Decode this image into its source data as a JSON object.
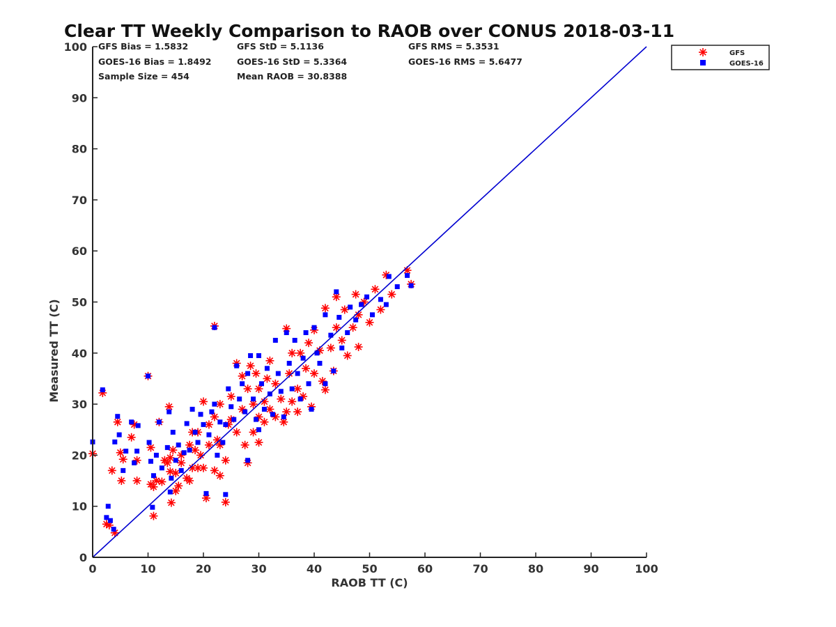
{
  "chart_data": {
    "type": "scatter",
    "title": "Clear TT Weekly Comparison to RAOB over CONUS 2018-03-11",
    "xlabel": "RAOB TT (C)",
    "ylabel": "Measured TT (C)",
    "xlim": [
      0,
      100
    ],
    "ylim": [
      0,
      100
    ],
    "xticks": [
      "0",
      "10",
      "20",
      "30",
      "40",
      "50",
      "60",
      "70",
      "80",
      "90",
      "100"
    ],
    "yticks": [
      "0",
      "10",
      "20",
      "30",
      "40",
      "50",
      "60",
      "70",
      "80",
      "90",
      "100"
    ],
    "grid": false,
    "legend_position": "top-right-outside",
    "reference_line": {
      "from": [
        0,
        0
      ],
      "to": [
        100,
        100
      ],
      "color": "#0000d0"
    },
    "stats": {
      "gfs_bias": "GFS Bias = 1.5832",
      "goes_bias": "GOES-16 Bias = 1.8492",
      "sample_size": "Sample Size = 454",
      "gfs_std": "GFS StD = 5.1136",
      "goes_std": "GOES-16 StD = 5.3364",
      "mean_raob": "Mean RAOB = 30.8388",
      "gfs_rms": "GFS RMS = 5.3531",
      "goes_rms": "GOES-16 RMS = 5.6477"
    },
    "series": [
      {
        "name": "GFS",
        "marker": "asterisk",
        "color": "#ff0000",
        "points": [
          [
            0,
            20.3
          ],
          [
            1.8,
            32.2
          ],
          [
            2.5,
            6.5
          ],
          [
            3,
            6.3
          ],
          [
            3.5,
            17
          ],
          [
            4,
            4.8
          ],
          [
            4.5,
            26.5
          ],
          [
            5,
            20.5
          ],
          [
            5.2,
            15
          ],
          [
            5.5,
            19.2
          ],
          [
            7,
            23.5
          ],
          [
            7.5,
            26
          ],
          [
            8,
            15
          ],
          [
            8,
            19
          ],
          [
            10,
            35.5
          ],
          [
            10.5,
            21.5
          ],
          [
            10.5,
            14.3
          ],
          [
            11,
            8.1
          ],
          [
            11,
            13.8
          ],
          [
            11.5,
            15
          ],
          [
            12,
            26.5
          ],
          [
            12.5,
            14.8
          ],
          [
            13,
            19
          ],
          [
            13.5,
            18.5
          ],
          [
            13.8,
            29.5
          ],
          [
            14,
            16.8
          ],
          [
            14,
            19.5
          ],
          [
            14.2,
            10.7
          ],
          [
            14.5,
            21
          ],
          [
            15,
            13
          ],
          [
            15,
            16.5
          ],
          [
            15.5,
            14
          ],
          [
            16,
            20
          ],
          [
            16,
            18.5
          ],
          [
            17,
            15.5
          ],
          [
            17.5,
            22
          ],
          [
            17.5,
            15
          ],
          [
            18,
            17.5
          ],
          [
            18,
            24.5
          ],
          [
            18.5,
            21
          ],
          [
            19,
            17.5
          ],
          [
            19,
            24.5
          ],
          [
            19.5,
            20
          ],
          [
            20,
            30.5
          ],
          [
            20,
            17.5
          ],
          [
            20.5,
            11.6
          ],
          [
            21,
            22
          ],
          [
            21,
            26
          ],
          [
            22,
            27.5
          ],
          [
            22,
            45.3
          ],
          [
            22,
            17
          ],
          [
            22.5,
            23
          ],
          [
            23,
            16
          ],
          [
            23,
            22
          ],
          [
            23,
            30
          ],
          [
            24,
            10.8
          ],
          [
            24,
            19
          ],
          [
            24.5,
            26
          ],
          [
            25,
            31.5
          ],
          [
            25,
            27
          ],
          [
            26,
            38
          ],
          [
            26,
            24.5
          ],
          [
            27,
            35.5
          ],
          [
            27,
            29
          ],
          [
            27.5,
            22
          ],
          [
            28,
            18.5
          ],
          [
            28,
            33
          ],
          [
            28.5,
            37.5
          ],
          [
            29,
            30
          ],
          [
            29,
            24.5
          ],
          [
            29.5,
            36
          ],
          [
            30,
            22.5
          ],
          [
            30,
            27.5
          ],
          [
            30,
            33
          ],
          [
            31,
            30.5
          ],
          [
            31,
            26.5
          ],
          [
            31.5,
            35
          ],
          [
            32,
            38.5
          ],
          [
            32,
            29
          ],
          [
            33,
            27.5
          ],
          [
            33,
            34
          ],
          [
            34,
            31
          ],
          [
            34.5,
            26.5
          ],
          [
            35,
            28.5
          ],
          [
            35,
            44.8
          ],
          [
            35.5,
            36
          ],
          [
            36,
            30.5
          ],
          [
            36,
            40
          ],
          [
            37,
            28.5
          ],
          [
            37,
            33
          ],
          [
            37.5,
            40
          ],
          [
            38,
            31.5
          ],
          [
            38.5,
            37
          ],
          [
            39,
            42
          ],
          [
            39.5,
            29.5
          ],
          [
            40,
            36
          ],
          [
            40,
            44.5
          ],
          [
            41,
            40.5
          ],
          [
            41.5,
            34.5
          ],
          [
            42,
            32.8
          ],
          [
            42,
            48.8
          ],
          [
            43,
            41
          ],
          [
            43.5,
            36.5
          ],
          [
            44,
            45
          ],
          [
            44,
            51
          ],
          [
            45,
            42.5
          ],
          [
            45.5,
            48.5
          ],
          [
            46,
            39.5
          ],
          [
            47,
            45
          ],
          [
            47.5,
            51.5
          ],
          [
            48,
            41.2
          ],
          [
            48,
            47.5
          ],
          [
            49,
            50
          ],
          [
            50,
            46
          ],
          [
            51,
            52.5
          ],
          [
            52,
            48.5
          ],
          [
            53,
            55.3
          ],
          [
            54,
            51.5
          ],
          [
            56.8,
            56.2
          ],
          [
            57.5,
            53.5
          ]
        ]
      },
      {
        "name": "GOES-16",
        "marker": "square",
        "color": "#0000ff",
        "points": [
          [
            0,
            22.6
          ],
          [
            1.8,
            32.8
          ],
          [
            2.5,
            7.8
          ],
          [
            2.8,
            10
          ],
          [
            3.2,
            7.2
          ],
          [
            3.8,
            5.5
          ],
          [
            4,
            22.6
          ],
          [
            4.5,
            27.6
          ],
          [
            4.8,
            24
          ],
          [
            5.5,
            17
          ],
          [
            6,
            20.8
          ],
          [
            7,
            26.5
          ],
          [
            7.5,
            18.5
          ],
          [
            8,
            20.8
          ],
          [
            8.2,
            25.8
          ],
          [
            10,
            35.5
          ],
          [
            10.2,
            22.5
          ],
          [
            10.5,
            18.8
          ],
          [
            10.8,
            9.8
          ],
          [
            11,
            16
          ],
          [
            11.5,
            20
          ],
          [
            12,
            26.5
          ],
          [
            12.5,
            17.5
          ],
          [
            13.5,
            21.5
          ],
          [
            13.8,
            28.5
          ],
          [
            14,
            12.8
          ],
          [
            14.2,
            15.5
          ],
          [
            14.5,
            24.5
          ],
          [
            15,
            19
          ],
          [
            15.5,
            22
          ],
          [
            16,
            17
          ],
          [
            16.5,
            20.5
          ],
          [
            17,
            26.2
          ],
          [
            17.5,
            21
          ],
          [
            18,
            29
          ],
          [
            18.5,
            24.5
          ],
          [
            19,
            22.5
          ],
          [
            19.5,
            28
          ],
          [
            20,
            26
          ],
          [
            20.5,
            12.5
          ],
          [
            21,
            24
          ],
          [
            21.5,
            28.5
          ],
          [
            22,
            45
          ],
          [
            22,
            30
          ],
          [
            22.5,
            20
          ],
          [
            23,
            26.5
          ],
          [
            23.5,
            22.5
          ],
          [
            24,
            12.3
          ],
          [
            24,
            26
          ],
          [
            24.5,
            33
          ],
          [
            25,
            29.5
          ],
          [
            25.5,
            27
          ],
          [
            26,
            37.5
          ],
          [
            26.5,
            31
          ],
          [
            27,
            34
          ],
          [
            27.5,
            28.5
          ],
          [
            28,
            19
          ],
          [
            28,
            36
          ],
          [
            28.5,
            39.5
          ],
          [
            29,
            31
          ],
          [
            29.5,
            27
          ],
          [
            30,
            39.5
          ],
          [
            30,
            25
          ],
          [
            30.5,
            34
          ],
          [
            31,
            29
          ],
          [
            31.5,
            37
          ],
          [
            32,
            32
          ],
          [
            32.5,
            28
          ],
          [
            33,
            42.5
          ],
          [
            33.5,
            36
          ],
          [
            34,
            32.5
          ],
          [
            34.5,
            27.5
          ],
          [
            35,
            44
          ],
          [
            35.5,
            38
          ],
          [
            36,
            33
          ],
          [
            36.5,
            42.5
          ],
          [
            37,
            36
          ],
          [
            37.5,
            31
          ],
          [
            38,
            39
          ],
          [
            38.5,
            44
          ],
          [
            39,
            34
          ],
          [
            39.5,
            29
          ],
          [
            40,
            45
          ],
          [
            40.5,
            40
          ],
          [
            41,
            38
          ],
          [
            42,
            47.5
          ],
          [
            42,
            34
          ],
          [
            43,
            43.5
          ],
          [
            43.5,
            36.5
          ],
          [
            44,
            52
          ],
          [
            44.5,
            47
          ],
          [
            45,
            41
          ],
          [
            46,
            44
          ],
          [
            46.5,
            49
          ],
          [
            47.5,
            46.5
          ],
          [
            48.5,
            49.5
          ],
          [
            49.5,
            51
          ],
          [
            50.5,
            47.5
          ],
          [
            52,
            50.5
          ],
          [
            53,
            49.5
          ],
          [
            53.5,
            55
          ],
          [
            55,
            53
          ],
          [
            56.8,
            55.2
          ],
          [
            57.5,
            53.2
          ]
        ]
      }
    ]
  },
  "legend": {
    "gfs_label": "GFS",
    "goes_label": "GOES-16"
  }
}
